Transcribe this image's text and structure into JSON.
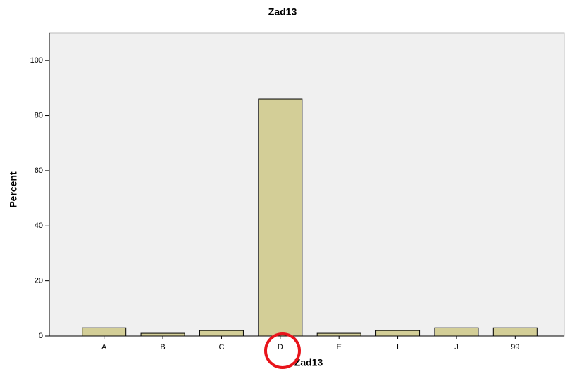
{
  "chart_data": {
    "type": "bar",
    "title": "Zad13",
    "x_label": "Zad13",
    "y_label": "Percent",
    "categories": [
      "A",
      "B",
      "C",
      "D",
      "E",
      "I",
      "J",
      "99"
    ],
    "values": [
      3,
      1,
      2,
      86,
      1,
      2,
      3,
      3
    ],
    "color": "#d3ce97",
    "ylim": [
      0,
      110
    ],
    "yticks": [
      0,
      20,
      40,
      60,
      80,
      100
    ],
    "grid": false
  }
}
